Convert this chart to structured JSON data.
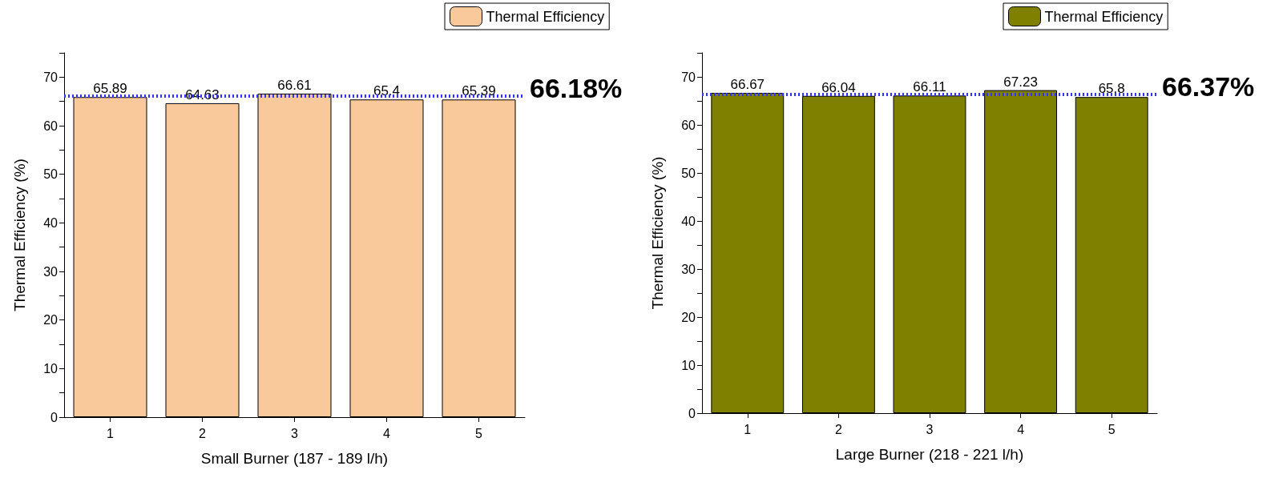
{
  "chart_data": [
    {
      "type": "bar",
      "categories": [
        "1",
        "2",
        "3",
        "4",
        "5"
      ],
      "xlabel": "Small Burner (187 - 189 l/h)",
      "ylabel": "Thermal Efficiency (%)",
      "series": [
        {
          "name": "Thermal Efficiency",
          "color": "#f9c89b",
          "values": [
            65.89,
            64.63,
            66.61,
            65.4,
            65.39
          ]
        }
      ],
      "ylim": [
        0,
        75
      ],
      "yticks": [
        0,
        {
          "value": 5,
          "label": null
        },
        10,
        {
          "value": 15,
          "label": null
        },
        20,
        {
          "value": 25,
          "label": null
        },
        30,
        {
          "value": 35,
          "label": null
        },
        40,
        {
          "value": 45,
          "label": null
        },
        50,
        {
          "value": 55,
          "label": null
        },
        60,
        {
          "value": 65,
          "label": null
        },
        70,
        {
          "value": 75,
          "label": null
        }
      ],
      "ref_lines": [
        {
          "axis": "y",
          "value": 66.18,
          "label": "66.18%",
          "color": "#3333ff",
          "line_style": "dotted"
        }
      ],
      "data_labels": true,
      "legend": "top right",
      "grid": false
    },
    {
      "type": "bar",
      "categories": [
        "1",
        "2",
        "3",
        "4",
        "5"
      ],
      "xlabel": "Large Burner (218 - 221 l/h)",
      "ylabel": "Thermal Efficiency (%)",
      "series": [
        {
          "name": "Thermal Efficiency",
          "color": "#808000",
          "values": [
            66.67,
            66.04,
            66.11,
            67.23,
            65.8
          ]
        }
      ],
      "ylim": [
        0,
        75
      ],
      "yticks": [
        0,
        {
          "value": 5,
          "label": null
        },
        10,
        {
          "value": 15,
          "label": null
        },
        20,
        {
          "value": 25,
          "label": null
        },
        30,
        {
          "value": 35,
          "label": null
        },
        40,
        {
          "value": 45,
          "label": null
        },
        50,
        {
          "value": 55,
          "label": null
        },
        60,
        {
          "value": 65,
          "label": null
        },
        70,
        {
          "value": 75,
          "label": null
        }
      ],
      "ref_lines": [
        {
          "axis": "y",
          "value": 66.37,
          "label": "66.37%",
          "color": "#3333ff",
          "line_style": "dotted"
        }
      ],
      "data_labels": true,
      "legend": "top right",
      "grid": false
    }
  ]
}
